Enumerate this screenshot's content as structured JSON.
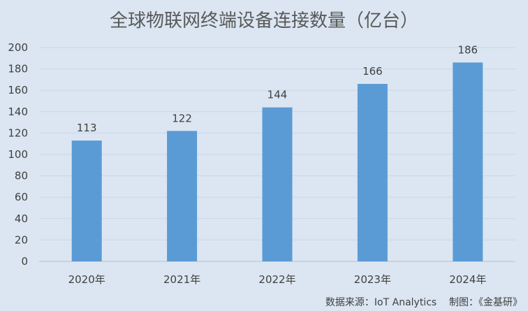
{
  "chart_data": {
    "type": "bar",
    "title": "全球物联网终端设备连接数量（亿台）",
    "categories": [
      "2020年",
      "2021年",
      "2022年",
      "2023年",
      "2024年"
    ],
    "values": [
      113,
      122,
      144,
      166,
      186
    ],
    "ylim": [
      0,
      200
    ],
    "yticks": [
      0,
      20,
      40,
      60,
      80,
      100,
      120,
      140,
      160,
      180,
      200
    ],
    "grid": true,
    "legend": "none",
    "bar_color": "#5b9bd5",
    "background_color": "#dbe6f2"
  },
  "source_note": "数据来源：IoT Analytics    制图：《金基研》"
}
